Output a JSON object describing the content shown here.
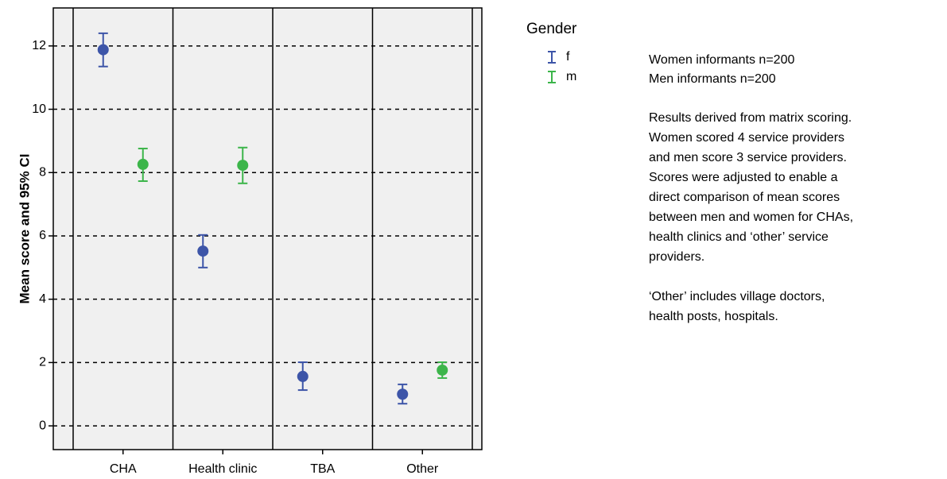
{
  "chart_data": {
    "type": "errorbar",
    "ylabel": "Mean score and 95% CI",
    "categories": [
      "CHA",
      "Health clinic",
      "TBA",
      "Other"
    ],
    "legend_title": "Gender",
    "series": [
      {
        "name": "f",
        "color": "#3d55a8",
        "values": [
          11.88,
          5.52,
          1.56,
          1.0
        ],
        "lower": [
          11.35,
          5.0,
          1.13,
          0.7
        ],
        "upper": [
          12.4,
          6.03,
          2.01,
          1.31
        ]
      },
      {
        "name": "m",
        "color": "#3cb54a",
        "values": [
          8.26,
          8.23,
          null,
          1.76
        ],
        "lower": [
          7.73,
          7.66,
          null,
          1.51
        ],
        "upper": [
          8.76,
          8.79,
          null,
          2.01
        ]
      }
    ],
    "ylim": [
      -0.75,
      13.2
    ],
    "yticks": [
      0,
      2,
      4,
      6,
      8,
      10,
      12
    ],
    "grid": true,
    "notes": [
      [
        "Women informants n=200",
        "Men informants n=200"
      ],
      [
        "Results derived from matrix scoring.",
        "Women scored 4 service providers",
        "and men score 3 service providers.",
        "Scores were adjusted to enable a",
        "direct comparison of mean scores",
        "between men and women for CHAs,",
        "health clinics and ‘other’ service",
        "providers."
      ],
      [
        "‘Other’ includes village doctors,",
        "health posts, hospitals."
      ]
    ]
  }
}
